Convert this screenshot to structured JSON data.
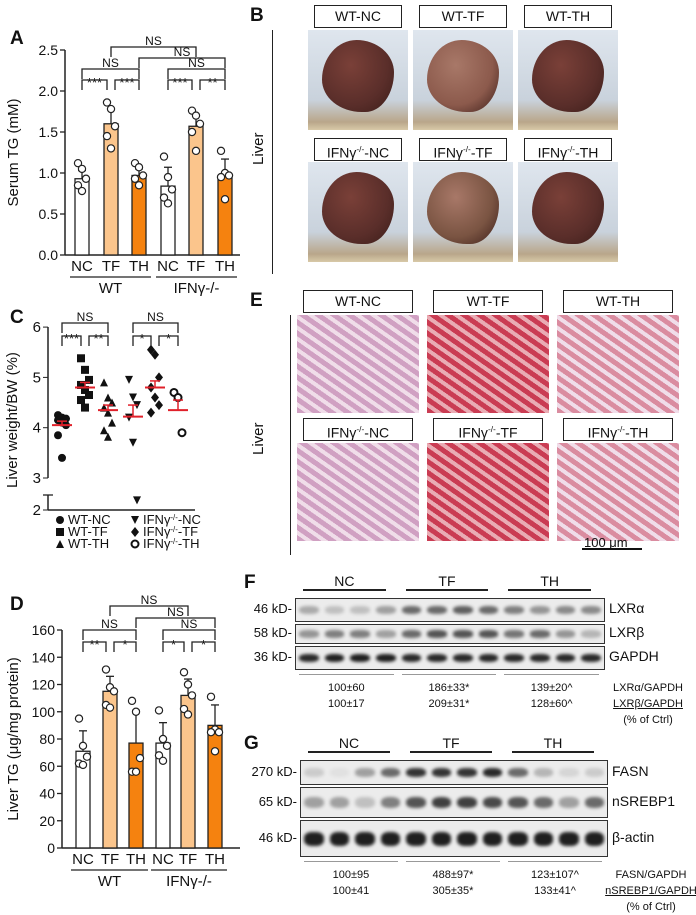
{
  "panels": {
    "A": {
      "label": "A"
    },
    "B": {
      "label": "B",
      "side_label": "Liver",
      "headers_top": [
        "WT-NC",
        "WT-TF",
        "WT-TH"
      ],
      "headers_bottom": [
        "IFNγ-/--NC",
        "IFNγ-/--TF",
        "IFNγ-/--TH"
      ]
    },
    "C": {
      "label": "C"
    },
    "D": {
      "label": "D"
    },
    "E": {
      "label": "E",
      "side_label": "Liver",
      "headers_top": [
        "WT-NC",
        "WT-TF",
        "WT-TH"
      ],
      "headers_bottom": [
        "IFNγ-/--NC",
        "IFNγ-/--TF",
        "IFNγ-/--TH"
      ],
      "scale_bar": "100 μm"
    },
    "F": {
      "label": "F",
      "groups": [
        "NC",
        "TF",
        "TH"
      ],
      "blots": [
        {
          "kd": "46 kD-",
          "protein": "LXRα"
        },
        {
          "kd": "58 kD-",
          "protein": "LXRβ"
        },
        {
          "kd": "36 kD-",
          "protein": "GAPDH"
        }
      ],
      "quant_rows": [
        [
          "100±60",
          "186±33*",
          "139±20^"
        ],
        [
          "100±17",
          "209±31*",
          "128±60^"
        ]
      ],
      "quant_labels": [
        "LXRα/GAPDH",
        "LXRβ/GAPDH",
        "(% of Ctrl)"
      ]
    },
    "G": {
      "label": "G",
      "groups": [
        "NC",
        "TF",
        "TH"
      ],
      "blots": [
        {
          "kd": "270 kD-",
          "protein": "FASN"
        },
        {
          "kd": "65 kD-",
          "protein": "nSREBP1"
        },
        {
          "kd": "46 kD-",
          "protein": "β-actin"
        }
      ],
      "quant_rows": [
        [
          "100±95",
          "488±97*",
          "123±107^"
        ],
        [
          "100±41",
          "305±35*",
          "133±41^"
        ]
      ],
      "quant_labels": [
        "FASN/GAPDH",
        "nSREBP1/GAPDH",
        "(% of Ctrl)"
      ]
    }
  },
  "chart_data": [
    {
      "panel": "A",
      "type": "bar",
      "ylabel": "Serum TG (mM)",
      "ylim": [
        0,
        2.5
      ],
      "yticks": [
        "0.0",
        "0.5",
        "1.0",
        "1.5",
        "2.0",
        "2.5"
      ],
      "categories": [
        "NC",
        "TF",
        "TH",
        "NC",
        "TF",
        "TH"
      ],
      "groups": [
        "WT",
        "IFNγ-/-"
      ],
      "colors": [
        "#ffffff",
        "#fbc58c",
        "#f5820f"
      ],
      "values": [
        0.93,
        1.6,
        0.97,
        0.84,
        1.57,
        0.96
      ],
      "errors": [
        0.1,
        0.18,
        0.08,
        0.23,
        0.12,
        0.21
      ],
      "points": [
        [
          1.12,
          1.05,
          0.93,
          0.85,
          0.78
        ],
        [
          1.86,
          1.78,
          1.57,
          1.45,
          1.3
        ],
        [
          1.12,
          1.07,
          0.97,
          0.93,
          0.85
        ],
        [
          1.2,
          0.95,
          0.8,
          0.7,
          0.63
        ],
        [
          1.76,
          1.7,
          1.6,
          1.5,
          1.27
        ],
        [
          1.27,
          1.0,
          0.97,
          0.95,
          0.68
        ]
      ],
      "comparisons": [
        {
          "pair": [
            0,
            1
          ],
          "label": "***"
        },
        {
          "pair": [
            1,
            2
          ],
          "label": "***"
        },
        {
          "pair": [
            0,
            2
          ],
          "label": "NS"
        },
        {
          "pair": [
            3,
            4
          ],
          "label": "***"
        },
        {
          "pair": [
            4,
            5
          ],
          "label": "**"
        },
        {
          "pair": [
            3,
            5
          ],
          "label": "NS"
        },
        {
          "pair": [
            2,
            5
          ],
          "label": "NS"
        },
        {
          "pair": [
            1,
            4
          ],
          "label": "NS"
        }
      ]
    },
    {
      "panel": "C",
      "type": "scatter",
      "ylabel": "Liver weight/BW (%)",
      "ylim": [
        2,
        6
      ],
      "axis_break": [
        2,
        3
      ],
      "yticks": [
        "2",
        "3",
        "4",
        "5",
        "6"
      ],
      "series": [
        {
          "name": "WT-NC",
          "marker": "circle",
          "points": [
            4.25,
            4.2,
            4.18,
            4.15,
            4.1,
            4.05,
            3.85,
            3.4
          ],
          "mean": 4.05,
          "sem": 0.08
        },
        {
          "name": "WT-TF",
          "marker": "square",
          "points": [
            5.38,
            5.15,
            4.95,
            4.85,
            4.75,
            4.65,
            4.55,
            4.4
          ],
          "mean": 4.8,
          "sem": 0.1
        },
        {
          "name": "WT-TH",
          "marker": "triangle-up",
          "points": [
            4.9,
            4.6,
            4.5,
            4.4,
            4.3,
            4.1,
            3.95,
            3.82
          ],
          "mean": 4.35,
          "sem": 0.1
        },
        {
          "name": "IFNγ-/--NC",
          "marker": "triangle-down",
          "points": [
            4.95,
            4.6,
            4.45,
            4.2,
            3.7,
            2.3
          ],
          "mean": 4.22,
          "sem": 0.23
        },
        {
          "name": "IFNγ-/--TF",
          "marker": "diamond",
          "points": [
            5.55,
            5.45,
            5.0,
            4.8,
            4.6,
            4.45,
            4.3
          ],
          "mean": 4.8,
          "sem": 0.13
        },
        {
          "name": "IFNγ-/--TH",
          "marker": "open-circle",
          "points": [
            4.7,
            4.6,
            3.9
          ],
          "mean": 4.35,
          "sem": 0.2
        }
      ],
      "mean_color": "#e0202a",
      "comparisons": [
        {
          "pair": [
            0,
            1
          ],
          "label": "***"
        },
        {
          "pair": [
            1,
            2
          ],
          "label": "**"
        },
        {
          "pair": [
            0,
            2
          ],
          "label": "NS"
        },
        {
          "pair": [
            3,
            4
          ],
          "label": "*"
        },
        {
          "pair": [
            4,
            5
          ],
          "label": "*"
        },
        {
          "pair": [
            3,
            5
          ],
          "label": "NS"
        }
      ]
    },
    {
      "panel": "D",
      "type": "bar",
      "ylabel": "Liver TG (μg/mg protein)",
      "ylim": [
        0,
        160
      ],
      "yticks": [
        "0",
        "20",
        "40",
        "60",
        "80",
        "100",
        "120",
        "140",
        "160"
      ],
      "categories": [
        "NC",
        "TF",
        "TH",
        "NC",
        "TF",
        "TH"
      ],
      "groups": [
        "WT",
        "IFNγ-/-"
      ],
      "colors": [
        "#ffffff",
        "#fbc58c",
        "#f5820f"
      ],
      "values": [
        71,
        115,
        77,
        77,
        112,
        90
      ],
      "errors": [
        15,
        11,
        24,
        15,
        12,
        15
      ],
      "points": [
        [
          95,
          75,
          67,
          62,
          61
        ],
        [
          131,
          118,
          115,
          105,
          103
        ],
        [
          108,
          100,
          66,
          56,
          56
        ],
        [
          101,
          80,
          75,
          68,
          64
        ],
        [
          129,
          120,
          112,
          102,
          98
        ],
        [
          111,
          87,
          85,
          85,
          71
        ]
      ],
      "comparisons": [
        {
          "pair": [
            0,
            1
          ],
          "label": "**"
        },
        {
          "pair": [
            1,
            2
          ],
          "label": "*"
        },
        {
          "pair": [
            0,
            2
          ],
          "label": "NS"
        },
        {
          "pair": [
            3,
            4
          ],
          "label": "*"
        },
        {
          "pair": [
            4,
            5
          ],
          "label": "*"
        },
        {
          "pair": [
            3,
            5
          ],
          "label": "NS"
        },
        {
          "pair": [
            2,
            5
          ],
          "label": "NS"
        },
        {
          "pair": [
            1,
            4
          ],
          "label": "NS"
        }
      ]
    }
  ]
}
